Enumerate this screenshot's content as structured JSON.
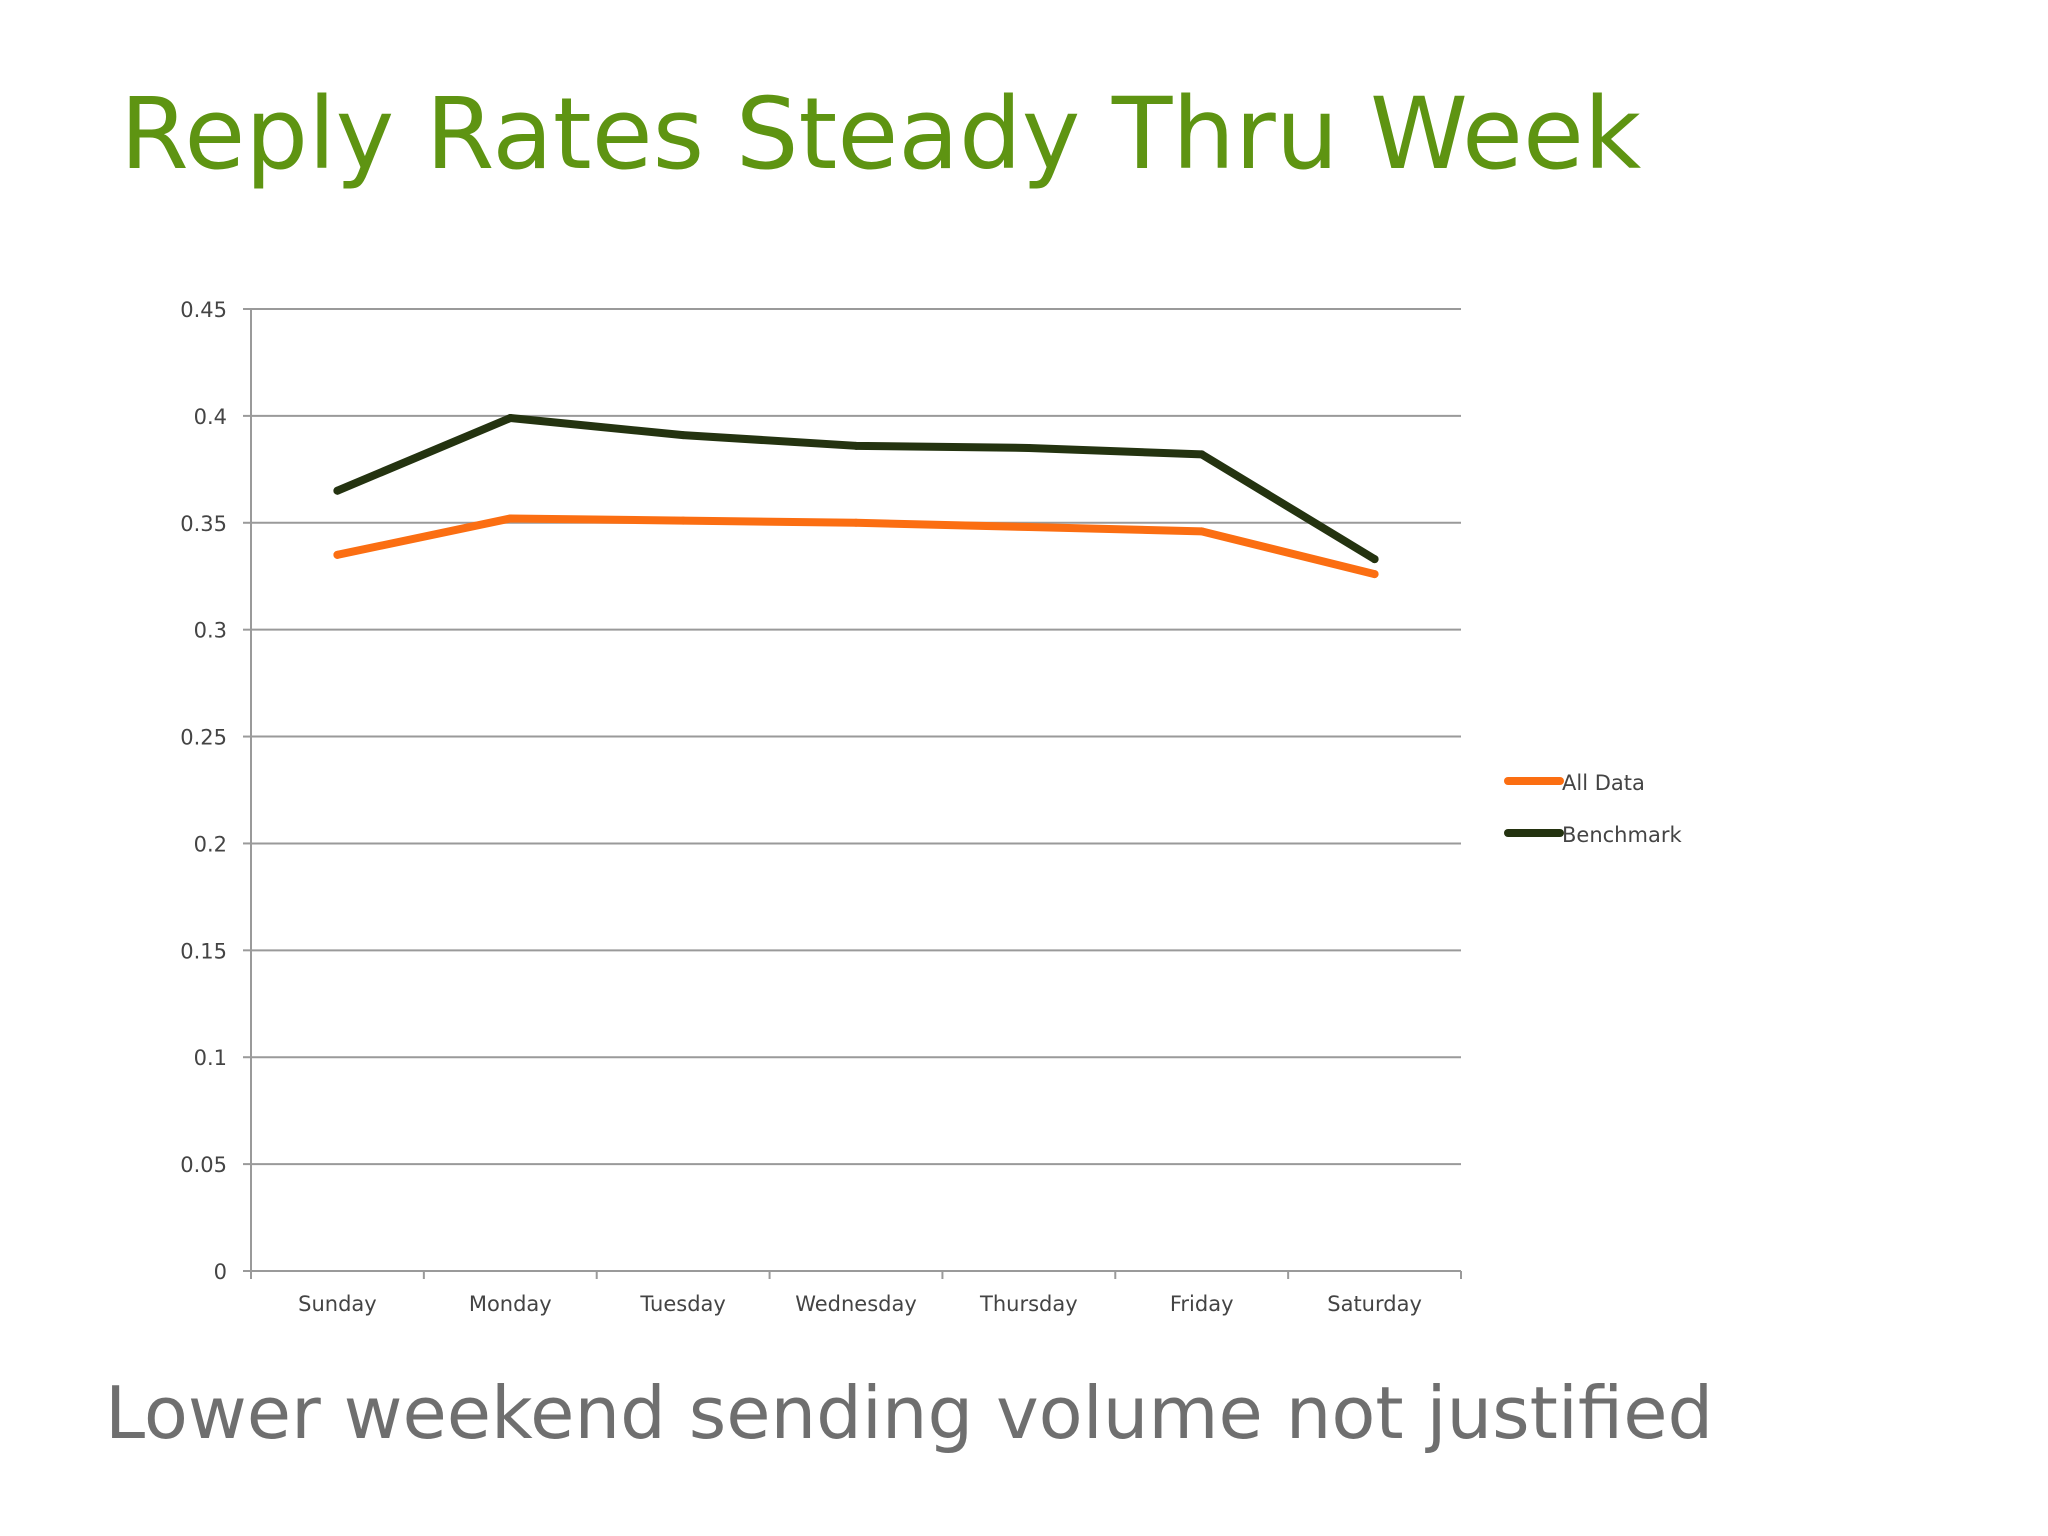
{
  "slide": {
    "title": "Reply Rates Steady Thru Week",
    "footer": "Lower weekend sending volume not justified"
  },
  "colors": {
    "title": "#5e9412",
    "footer": "#6f6f6f",
    "grid": "#9a9a9a",
    "axis_text": "#444444"
  },
  "chart_data": {
    "type": "line",
    "categories": [
      "Sunday",
      "Monday",
      "Tuesday",
      "Wednesday",
      "Thursday",
      "Friday",
      "Saturday"
    ],
    "series": [
      {
        "name": "All Data",
        "color": "#fb6e12",
        "values": [
          0.335,
          0.352,
          0.351,
          0.35,
          0.348,
          0.346,
          0.326
        ]
      },
      {
        "name": "Benchmark",
        "color": "#243310",
        "values": [
          0.365,
          0.399,
          0.391,
          0.386,
          0.385,
          0.382,
          0.333
        ]
      }
    ],
    "ylim": [
      0,
      0.45
    ],
    "yticks": [
      "0",
      "0.05",
      "0.1",
      "0.15",
      "0.2",
      "0.25",
      "0.3",
      "0.35",
      "0.4",
      "0.45"
    ],
    "grid": true,
    "legend_position": "right"
  }
}
